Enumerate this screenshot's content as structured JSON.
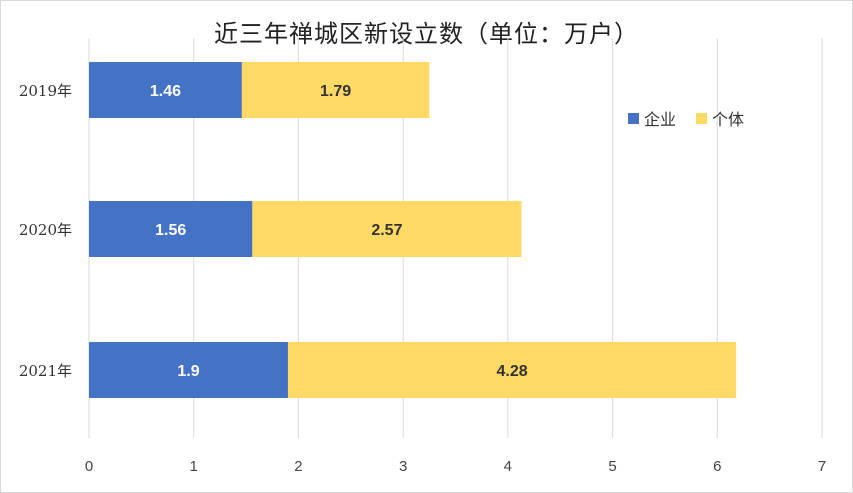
{
  "chart_data": {
    "type": "bar",
    "orientation": "horizontal",
    "stacked": true,
    "title": "近三年禅城区新设立数（单位：万户）",
    "categories": [
      "2019年",
      "2020年",
      "2021年"
    ],
    "series": [
      {
        "name": "企业",
        "values": [
          1.46,
          1.56,
          1.9
        ],
        "color": "#4472c4",
        "label_color": "#ffffff"
      },
      {
        "name": "个体",
        "values": [
          1.79,
          2.57,
          4.28
        ],
        "color": "#ffd966",
        "label_color": "#333333"
      }
    ],
    "xlim": [
      0,
      7
    ],
    "xticks": [
      "0",
      "1",
      "2",
      "3",
      "4",
      "5",
      "6",
      "7"
    ],
    "grid": true,
    "legend": "right"
  }
}
